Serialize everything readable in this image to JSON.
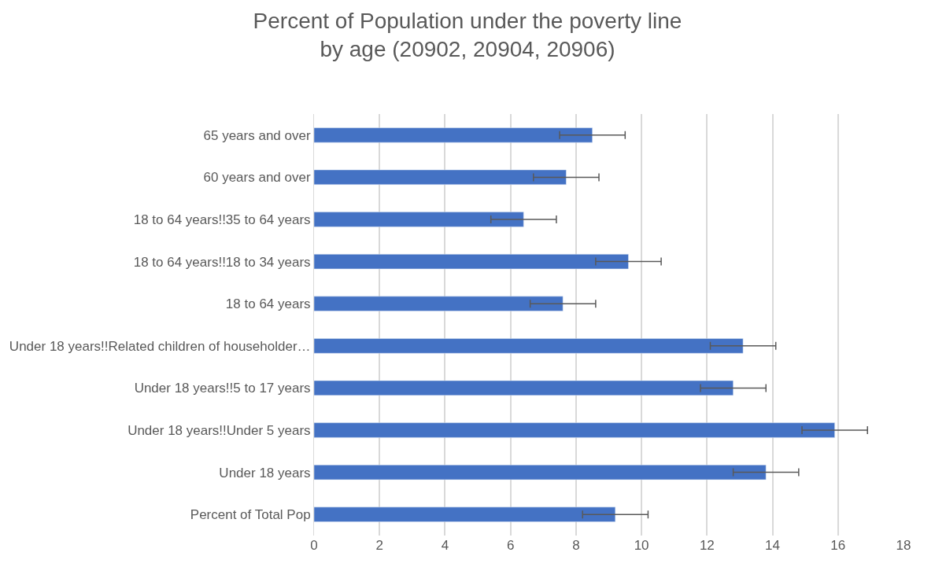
{
  "chart_data": {
    "type": "bar",
    "orientation": "horizontal",
    "title": "Percent of Population under the poverty line by age (20902, 20904, 20906)",
    "categories": [
      "65 years and over",
      "60 years and over",
      "18 to 64 years!!35 to 64 years",
      "18 to 64 years!!18 to 34 years",
      "18 to 64 years",
      "Under 18 years!!Related children of householder…",
      "Under 18 years!!5 to 17 years",
      "Under 18 years!!Under 5 years",
      "Under 18 years",
      "Percent of Total Pop"
    ],
    "values": [
      8.5,
      7.7,
      6.4,
      9.6,
      7.6,
      13.1,
      12.8,
      15.9,
      13.8,
      9.2
    ],
    "errors": [
      1,
      1,
      1,
      1,
      1,
      1,
      1,
      1,
      1,
      1
    ],
    "color": "#4472c4",
    "xlim": [
      0,
      18
    ],
    "xticks": [
      0,
      2,
      4,
      6,
      8,
      10,
      12,
      14,
      16,
      18
    ],
    "grid": "x"
  }
}
